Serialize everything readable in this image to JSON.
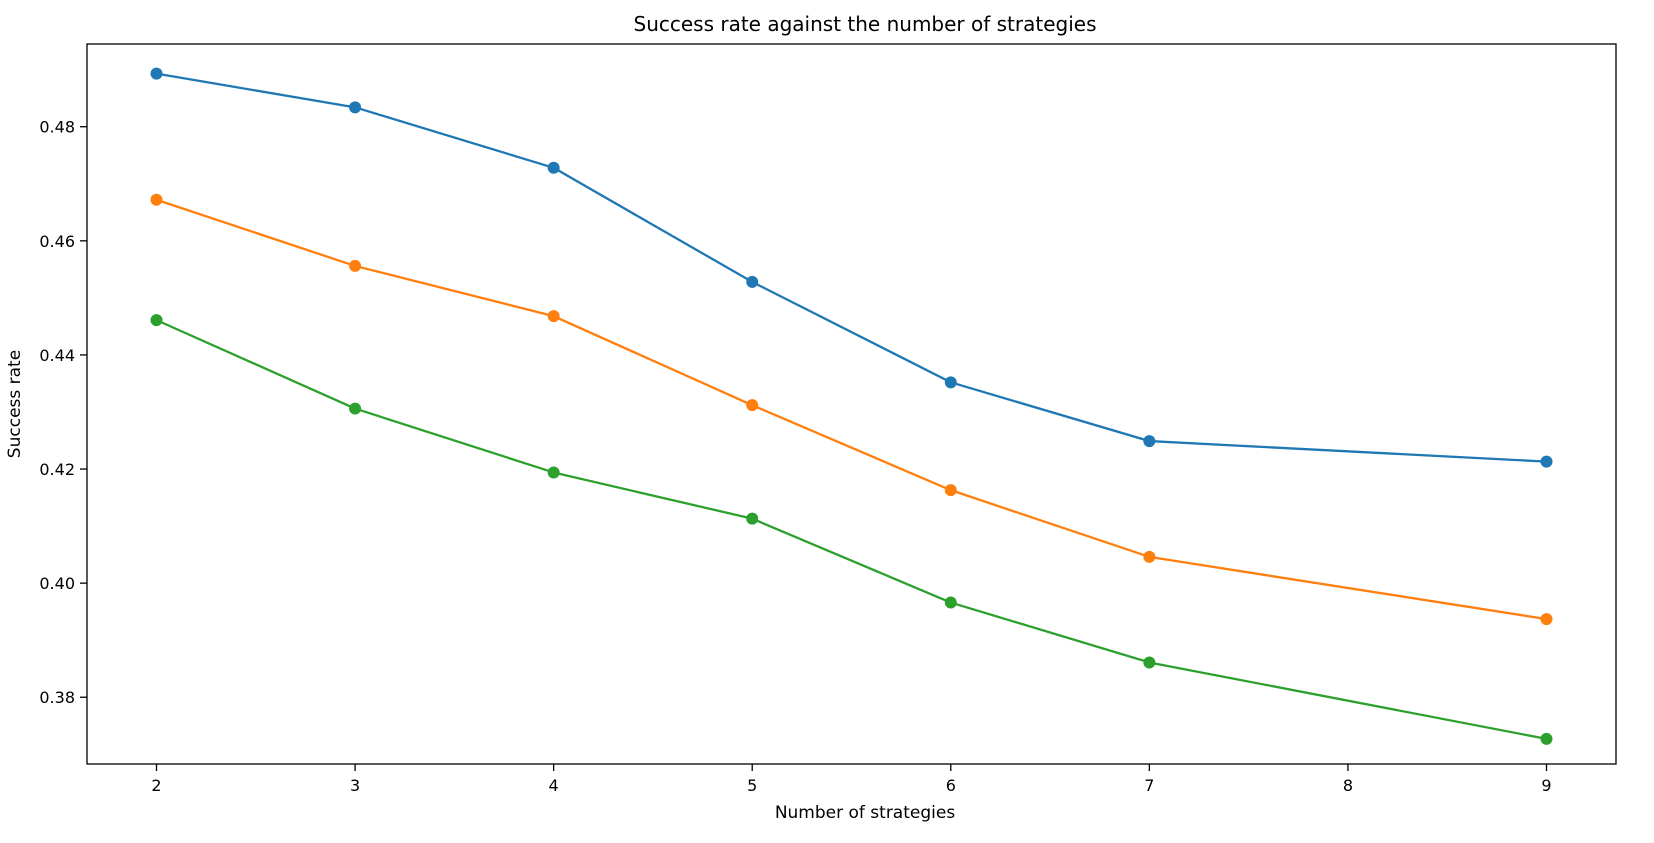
{
  "chart_data": {
    "type": "line",
    "title": "Success rate against the number of strategies",
    "xlabel": "Number of strategies",
    "ylabel": "Success rate",
    "x": [
      2,
      3,
      4,
      5,
      6,
      7,
      9
    ],
    "xlim": [
      1.65,
      9.35
    ],
    "ylim": [
      0.3683,
      0.4945
    ],
    "xticks": [
      2,
      3,
      4,
      5,
      6,
      7,
      8,
      9
    ],
    "yticks": [
      0.38,
      0.4,
      0.42,
      0.44,
      0.46,
      0.48
    ],
    "ytick_labels": [
      "0.38",
      "0.40",
      "0.42",
      "0.44",
      "0.46",
      "0.48"
    ],
    "grid": false,
    "series": [
      {
        "color": "#1f77b4",
        "values": [
          0.4893,
          0.4834,
          0.4728,
          0.4528,
          0.4352,
          0.4249,
          0.4213
        ]
      },
      {
        "color": "#ff7f0e",
        "values": [
          0.4672,
          0.4556,
          0.4468,
          0.4312,
          0.4163,
          0.4046,
          0.3937
        ]
      },
      {
        "color": "#2ca02c",
        "values": [
          0.4461,
          0.4306,
          0.4194,
          0.4113,
          0.3966,
          0.3861,
          0.3727
        ]
      }
    ]
  }
}
